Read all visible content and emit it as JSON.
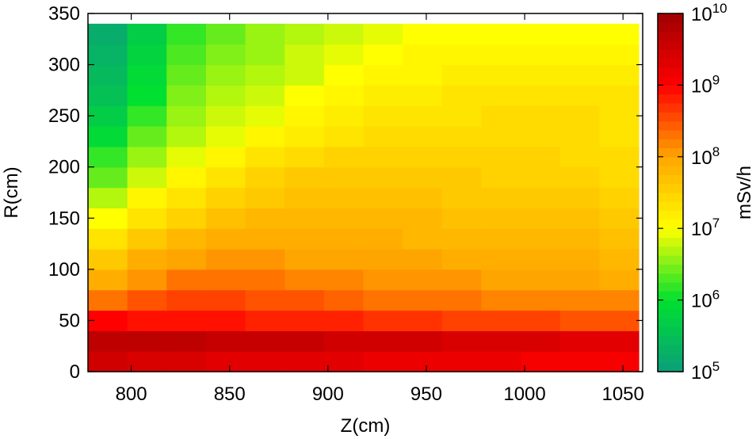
{
  "chart_data": {
    "type": "heatmap",
    "xlabel": "Z(cm)",
    "ylabel": "R(cm)",
    "colorbar_label": "mSv/h",
    "xlim": [
      778,
      1060
    ],
    "ylim": [
      0,
      350
    ],
    "x_ticks": [
      800,
      850,
      900,
      950,
      1000,
      1050
    ],
    "y_ticks": [
      0,
      50,
      100,
      150,
      200,
      250,
      300,
      350
    ],
    "colorbar_range_log10": [
      5,
      10
    ],
    "colorbar_ticks": [
      {
        "base": "10",
        "exp": "10",
        "value": 10
      },
      {
        "base": "10",
        "exp": "9",
        "value": 9
      },
      {
        "base": "10",
        "exp": "8",
        "value": 8
      },
      {
        "base": "10",
        "exp": "7",
        "value": 7
      },
      {
        "base": "10",
        "exp": "6",
        "value": 6
      },
      {
        "base": "10",
        "exp": "5",
        "value": 5
      }
    ],
    "colormap": [
      "#0a9f7a",
      "#00e030",
      "#ffff00",
      "#ffa500",
      "#ff0000",
      "#a00000"
    ],
    "grid": {
      "z_bin_edges": [
        778,
        798,
        818,
        838,
        858,
        878,
        898,
        918,
        938,
        958,
        978,
        998,
        1018,
        1038,
        1058
      ],
      "r_bin_edges": [
        0,
        20,
        40,
        60,
        80,
        100,
        120,
        140,
        160,
        180,
        200,
        220,
        240,
        260,
        280,
        300,
        320,
        340
      ],
      "log10_dose_by_r_row": [
        [
          9.5,
          9.4,
          9.4,
          9.3,
          9.3,
          9.3,
          9.3,
          9.2,
          9.2,
          9.2,
          9.2,
          9.1,
          9.1,
          9.1
        ],
        [
          9.7,
          9.7,
          9.7,
          9.6,
          9.6,
          9.6,
          9.5,
          9.5,
          9.5,
          9.4,
          9.4,
          9.4,
          9.3,
          9.3
        ],
        [
          9.0,
          8.9,
          8.9,
          8.9,
          8.8,
          8.8,
          8.8,
          8.7,
          8.7,
          8.6,
          8.6,
          8.6,
          8.5,
          8.5
        ],
        [
          8.3,
          8.5,
          8.6,
          8.6,
          8.5,
          8.5,
          8.4,
          8.3,
          8.3,
          8.3,
          8.2,
          8.2,
          8.2,
          8.2
        ],
        [
          7.9,
          8.1,
          8.3,
          8.3,
          8.3,
          8.2,
          8.2,
          8.1,
          8.1,
          8.1,
          8.0,
          8.0,
          8.0,
          7.9
        ],
        [
          7.6,
          7.9,
          8.0,
          8.1,
          8.1,
          8.0,
          8.0,
          8.0,
          8.0,
          7.9,
          7.9,
          7.9,
          7.9,
          7.8
        ],
        [
          7.3,
          7.6,
          7.8,
          7.9,
          7.9,
          7.9,
          7.9,
          7.9,
          7.8,
          7.8,
          7.8,
          7.8,
          7.8,
          7.7
        ],
        [
          7.0,
          7.3,
          7.5,
          7.7,
          7.8,
          7.8,
          7.8,
          7.8,
          7.8,
          7.7,
          7.7,
          7.7,
          7.7,
          7.6
        ],
        [
          6.7,
          7.1,
          7.3,
          7.5,
          7.6,
          7.7,
          7.7,
          7.7,
          7.7,
          7.6,
          7.6,
          7.6,
          7.6,
          7.5
        ],
        [
          6.4,
          6.8,
          7.1,
          7.3,
          7.5,
          7.6,
          7.6,
          7.6,
          7.6,
          7.6,
          7.5,
          7.5,
          7.5,
          7.4
        ],
        [
          6.2,
          6.6,
          6.9,
          7.1,
          7.3,
          7.4,
          7.5,
          7.5,
          7.5,
          7.5,
          7.5,
          7.5,
          7.4,
          7.4
        ],
        [
          5.9,
          6.4,
          6.7,
          6.9,
          7.1,
          7.2,
          7.3,
          7.4,
          7.4,
          7.4,
          7.4,
          7.4,
          7.4,
          7.3
        ],
        [
          5.7,
          6.2,
          6.6,
          6.8,
          6.9,
          7.1,
          7.2,
          7.3,
          7.3,
          7.3,
          7.4,
          7.4,
          7.4,
          7.3
        ],
        [
          5.5,
          6.0,
          6.5,
          6.7,
          6.8,
          7.0,
          7.1,
          7.2,
          7.2,
          7.3,
          7.3,
          7.3,
          7.3,
          7.3
        ],
        [
          5.4,
          5.9,
          6.4,
          6.6,
          6.7,
          6.8,
          7.0,
          7.1,
          7.1,
          7.2,
          7.2,
          7.2,
          7.2,
          7.2
        ],
        [
          5.3,
          5.8,
          6.3,
          6.5,
          6.6,
          6.8,
          6.9,
          7.0,
          7.1,
          7.1,
          7.1,
          7.1,
          7.1,
          7.1
        ],
        [
          5.2,
          5.7,
          6.2,
          6.4,
          6.6,
          6.7,
          6.8,
          6.9,
          7.0,
          7.0,
          7.0,
          7.0,
          7.0,
          7.0
        ]
      ]
    }
  }
}
